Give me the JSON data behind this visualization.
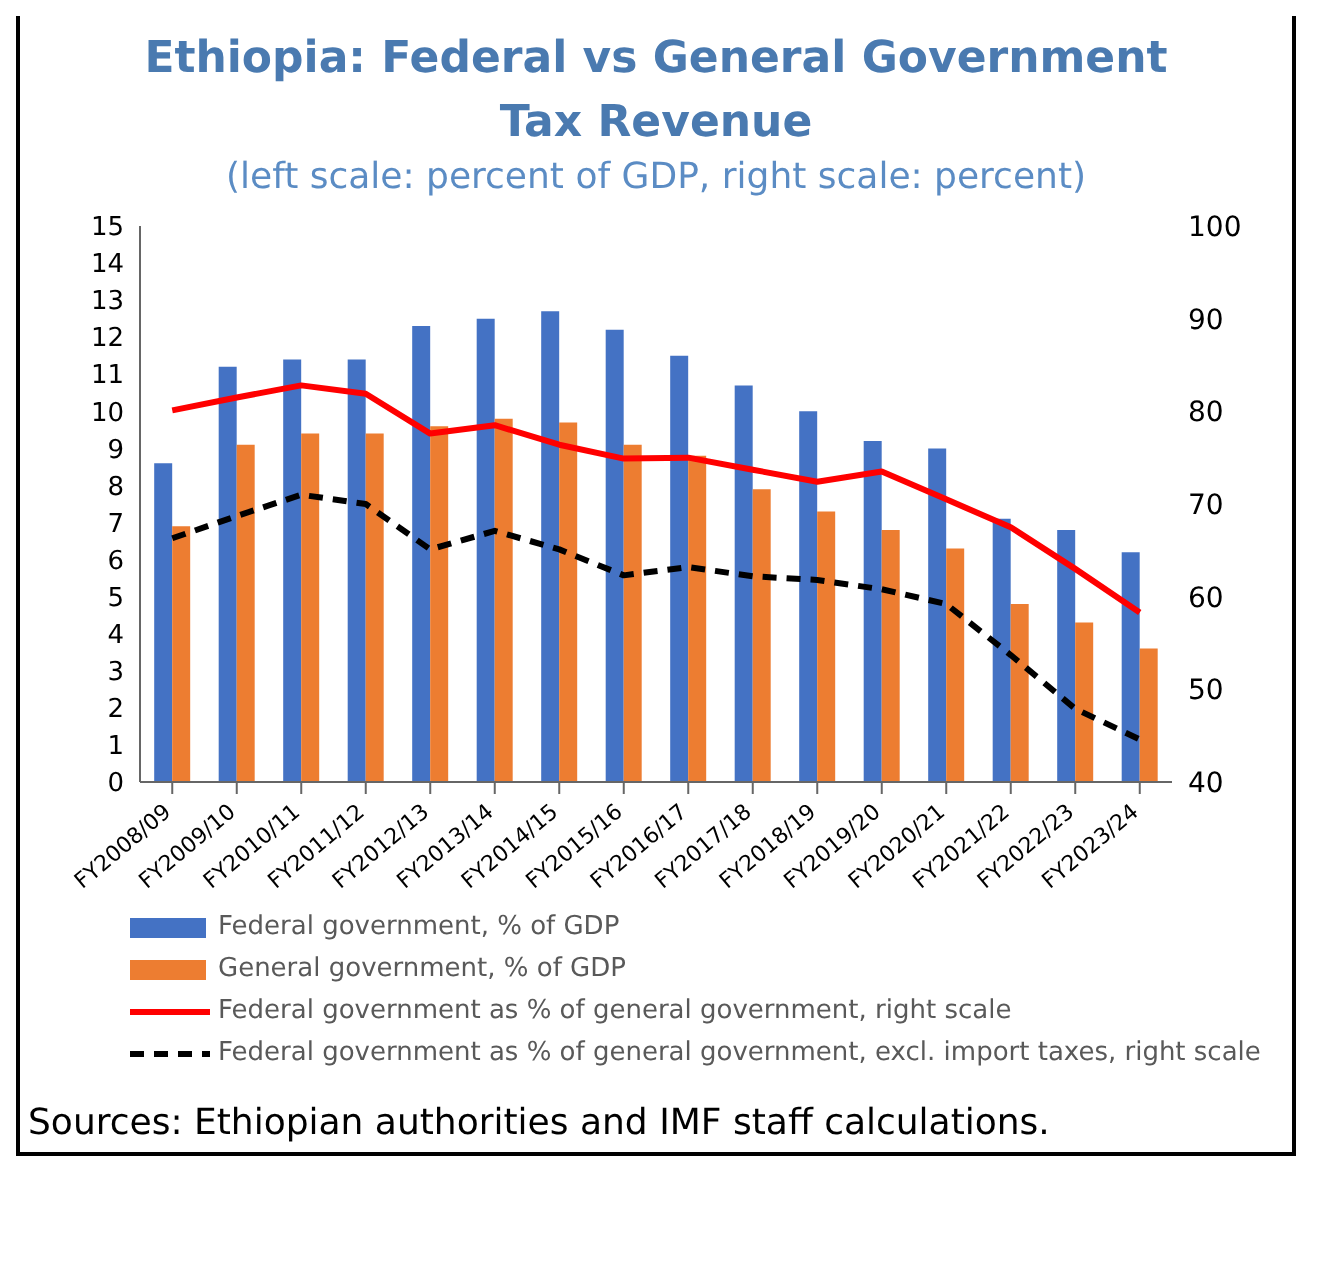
{
  "chart_data": {
    "type": "bar",
    "title": "Ethiopia: Federal vs General Government Tax Revenue",
    "subtitle": "(left scale: percent of GDP, right scale: percent)",
    "categories": [
      "FY2008/09",
      "FY2009/10",
      "FY2010/11",
      "FY2011/12",
      "FY2012/13",
      "FY2013/14",
      "FY2014/15",
      "FY2015/16",
      "FY2016/17",
      "FY2017/18",
      "FY2018/19",
      "FY2019/20",
      "FY2020/21",
      "FY2021/22",
      "FY2022/23",
      "FY2023/24"
    ],
    "series": [
      {
        "name": "Federal government, % of GDP",
        "color": "#4472c4",
        "values": [
          8.6,
          11.2,
          11.4,
          11.4,
          12.3,
          12.5,
          12.7,
          12.2,
          11.5,
          10.7,
          10.0,
          9.2,
          9.0,
          7.1,
          6.8,
          6.2
        ]
      },
      {
        "name": "General government, % of GDP",
        "color": "#ed7d31",
        "values": [
          6.9,
          9.1,
          9.4,
          9.4,
          9.6,
          9.8,
          9.7,
          9.1,
          8.8,
          7.9,
          7.3,
          6.8,
          6.3,
          4.8,
          4.3,
          3.6
        ]
      },
      {
        "name": "Federal government as % of general government, right scale",
        "type": "line",
        "axis": "y2",
        "color": "#ff0000",
        "line_style": "solid",
        "values": [
          80.1,
          81.5,
          82.8,
          81.9,
          77.6,
          78.5,
          76.4,
          74.9,
          75.0,
          73.7,
          72.4,
          73.5,
          70.5,
          67.5,
          63.0,
          58.3
        ]
      },
      {
        "name": "Federal government as % of general government, excl. import taxes, right scale",
        "type": "line",
        "axis": "y2",
        "color": "#000000",
        "line_style": "dashed",
        "values": [
          66.3,
          68.7,
          71.0,
          70.0,
          65.1,
          67.1,
          65.1,
          62.3,
          63.2,
          62.2,
          61.8,
          60.8,
          59.2,
          53.7,
          47.9,
          44.6
        ]
      }
    ],
    "ylim": [
      0,
      15
    ],
    "yticks": [
      0,
      1,
      2,
      3,
      4,
      5,
      6,
      7,
      8,
      9,
      10,
      11,
      12,
      13,
      14,
      15
    ],
    "y2lim": [
      40,
      100
    ],
    "y2ticks": [
      40,
      50,
      60,
      70,
      80,
      90,
      100
    ],
    "grid": false,
    "legend": "bottom left",
    "marker": "none",
    "annotations": [
      "Sources: Ethiopian authorities and IMF staff calculations."
    ]
  }
}
